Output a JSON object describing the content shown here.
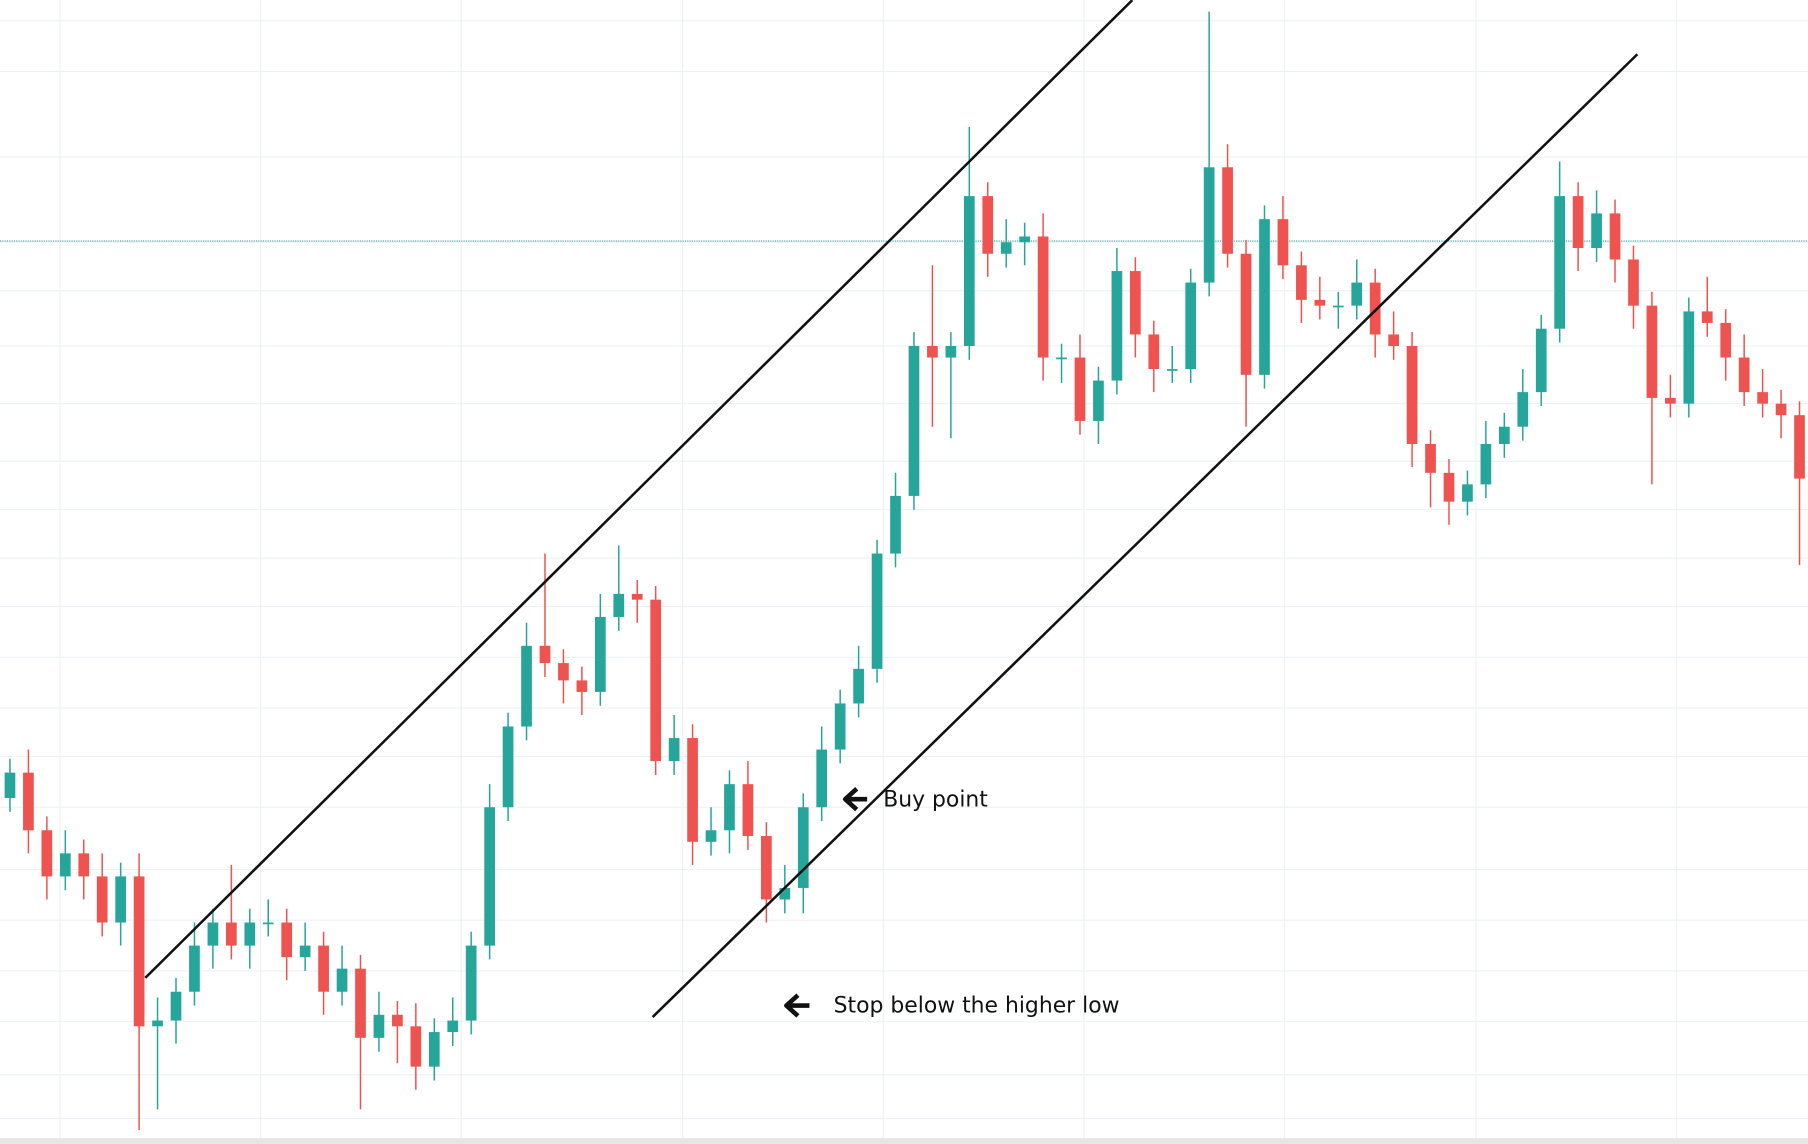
{
  "chart_data": {
    "type": "candlestick",
    "up_color": "#26a69a",
    "down_color": "#ef5350",
    "ylim": [
      0,
      992
    ],
    "price_line": 783,
    "price_line_color": "#26a69a",
    "open": [
      300,
      322,
      272,
      232,
      252,
      232,
      192,
      232,
      102,
      107,
      132,
      172,
      192,
      172,
      192,
      192,
      162,
      172,
      132,
      152,
      92,
      112,
      102,
      67,
      97,
      107,
      172,
      292,
      362,
      432,
      417,
      402,
      392,
      457,
      477,
      472,
      332,
      352,
      262,
      272,
      312,
      267,
      212,
      222,
      292,
      342,
      382,
      412,
      512,
      562,
      692,
      682,
      692,
      822,
      772,
      782,
      787,
      682,
      682,
      627,
      662,
      757,
      702,
      672,
      672,
      747,
      847,
      772,
      667,
      802,
      762,
      732,
      727,
      727,
      747,
      702,
      692,
      607,
      582,
      557,
      572,
      607,
      622,
      652,
      707,
      822,
      777,
      807,
      767,
      727,
      647,
      642,
      722,
      712,
      682,
      652,
      642,
      632
    ],
    "high": [
      334,
      342,
      284,
      272,
      264,
      252,
      244,
      252,
      127,
      144,
      192,
      204,
      242,
      204,
      212,
      204,
      192,
      184,
      172,
      164,
      132,
      124,
      122,
      109,
      127,
      184,
      312,
      374,
      452,
      512,
      429,
      414,
      477,
      519,
      489,
      484,
      372,
      364,
      292,
      324,
      332,
      279,
      242,
      304,
      362,
      394,
      432,
      524,
      582,
      704,
      762,
      704,
      882,
      834,
      802,
      799,
      807,
      694,
      702,
      674,
      777,
      769,
      714,
      692,
      759,
      982,
      867,
      784,
      814,
      822,
      774,
      752,
      739,
      767,
      759,
      722,
      704,
      619,
      594,
      584,
      627,
      634,
      672,
      719,
      852,
      834,
      827,
      819,
      779,
      739,
      667,
      734,
      752,
      724,
      702,
      672,
      654,
      644
    ],
    "low": [
      288,
      252,
      212,
      220,
      212,
      180,
      172,
      12,
      30,
      87,
      120,
      152,
      160,
      152,
      180,
      142,
      150,
      112,
      120,
      30,
      80,
      70,
      47,
      55,
      85,
      95,
      160,
      280,
      350,
      405,
      382,
      372,
      380,
      445,
      452,
      320,
      320,
      242,
      250,
      252,
      255,
      192,
      200,
      200,
      280,
      330,
      370,
      400,
      500,
      550,
      622,
      612,
      680,
      752,
      760,
      762,
      662,
      660,
      615,
      607,
      650,
      682,
      652,
      660,
      660,
      735,
      760,
      622,
      655,
      750,
      712,
      715,
      707,
      715,
      682,
      680,
      587,
      552,
      537,
      545,
      560,
      595,
      610,
      640,
      695,
      757,
      765,
      747,
      707,
      572,
      630,
      630,
      700,
      662,
      640,
      630,
      612,
      502
    ],
    "close": [
      322,
      272,
      232,
      252,
      232,
      192,
      232,
      102,
      107,
      132,
      172,
      192,
      172,
      192,
      192,
      162,
      172,
      132,
      152,
      92,
      112,
      102,
      67,
      97,
      107,
      172,
      292,
      362,
      432,
      417,
      402,
      392,
      457,
      477,
      472,
      332,
      352,
      262,
      272,
      312,
      267,
      212,
      222,
      292,
      342,
      382,
      412,
      512,
      562,
      692,
      682,
      692,
      822,
      772,
      782,
      787,
      682,
      682,
      627,
      662,
      757,
      702,
      672,
      672,
      747,
      847,
      772,
      667,
      802,
      762,
      732,
      727,
      727,
      747,
      702,
      692,
      607,
      582,
      557,
      572,
      607,
      622,
      652,
      707,
      822,
      777,
      807,
      767,
      727,
      647,
      642,
      722,
      712,
      682,
      652,
      642,
      632,
      577
    ],
    "annotations": [
      "Buy point",
      "Stop below the higher low"
    ]
  }
}
